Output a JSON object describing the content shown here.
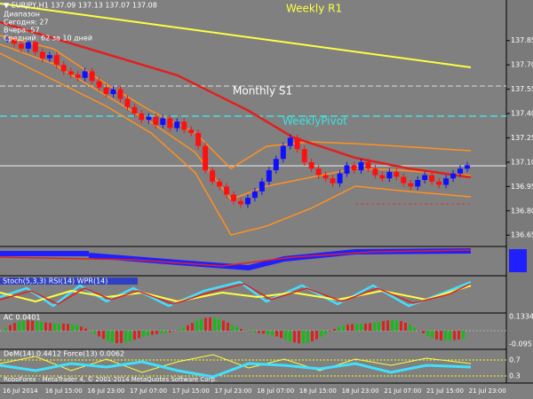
{
  "header": {
    "symbol": "▼ EURJPY,H1 137.09 137.13 137.07 137.08",
    "info": [
      "Диапазон",
      "Сегодня: 27",
      "Вчера: 57",
      "Средний: 62 за 10 дней"
    ]
  },
  "levels": {
    "weekly_r1": "Weekly R1",
    "monthly_s1": "Monthly S1",
    "weekly_pivot": "WeeklyPivot"
  },
  "chart_data": {
    "type": "candlestick",
    "close": [
      137.86,
      137.83,
      137.8,
      137.84,
      137.78,
      137.74,
      137.76,
      137.7,
      137.66,
      137.64,
      137.62,
      137.66,
      137.6,
      137.56,
      137.52,
      137.55,
      137.49,
      137.44,
      137.4,
      137.36,
      137.38,
      137.33,
      137.37,
      137.31,
      137.35,
      137.3,
      137.28,
      137.2,
      137.05,
      136.98,
      136.95,
      136.9,
      136.86,
      136.84,
      136.88,
      136.92,
      136.98,
      137.05,
      137.12,
      137.2,
      137.25,
      137.18,
      137.1,
      137.06,
      137.02,
      137.0,
      136.97,
      137.03,
      137.08,
      137.05,
      137.1,
      137.06,
      137.02,
      137.0,
      137.04,
      137.01,
      136.97,
      136.95,
      136.99,
      137.02,
      136.98,
      136.96,
      137.0,
      137.03,
      137.06,
      137.08
    ],
    "bull_color": "#1010ff",
    "bear_color": "#ff1010",
    "ylim": [
      136.58,
      138.1
    ],
    "yticks": [
      {
        "value": 137.85,
        "label": "137.85"
      },
      {
        "value": 137.7,
        "label": "137.70"
      },
      {
        "value": 137.55,
        "label": "137.55"
      },
      {
        "value": 137.4,
        "label": "137.40"
      },
      {
        "value": 137.25,
        "label": "137.25"
      },
      {
        "value": 137.1,
        "label": "137.10"
      },
      {
        "value": 136.95,
        "label": "136.95"
      },
      {
        "value": 136.8,
        "label": "136.80"
      },
      {
        "value": 136.65,
        "label": "136.65"
      }
    ],
    "x_labels": [
      "16 Jul 2014",
      "16 Jul 15:00",
      "16 Jul 23:00",
      "17 Jul 07:00",
      "17 Jul 15:00",
      "17 Jul 23:00",
      "18 Jul 07:00",
      "18 Jul 15:00",
      "18 Jul 23:00",
      "21 Jul 07:00",
      "21 Jul 15:00",
      "21 Jul 23:00"
    ]
  },
  "panels": {
    "stoch": "Stoch(5,3,3) RSI(14) WPR(14)",
    "ac": "AC 0.0401",
    "ac_max": "0.1334",
    "ac_min": "-0.0951",
    "dem": "DeM(14) 0.4412  Force(13) 0.0062",
    "dem_hi": "0.7",
    "dem_lo": "0.3"
  },
  "footer": "RoboForex - MetaTrader 4, © 2001-2014 MetaQuotes Software Corp."
}
